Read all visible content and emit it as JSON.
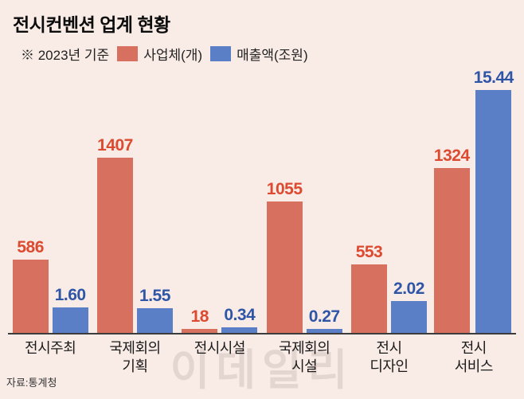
{
  "title": "전시컨벤션 업계 현황",
  "legend": {
    "note": "※ 2023년 기준",
    "series1_label": "사업체(개)",
    "series2_label": "매출액(조원)"
  },
  "source": "자료:통계청",
  "watermark": "이데일리",
  "colors": {
    "background": "#f9ece7",
    "bar_red": "#d7705e",
    "bar_blue": "#5b7fc7",
    "label_red": "#dc4a30",
    "label_blue": "#2f55a7"
  },
  "chart_data": {
    "type": "bar",
    "title": "전시컨벤션 업계 현황",
    "subtitle": "※ 2023년 기준",
    "legend_position": "top",
    "grid": false,
    "categories": [
      "전시주최",
      "국제회의\n기획",
      "전시시설",
      "국제회의\n시설",
      "전시\n디자인",
      "전시\n서비스"
    ],
    "series": [
      {
        "name": "사업체(개)",
        "values": [
          586,
          1407,
          18,
          1055,
          553,
          1324
        ]
      },
      {
        "name": "매출액(조원)",
        "values": [
          1.6,
          1.55,
          0.34,
          0.27,
          2.02,
          15.44
        ]
      }
    ],
    "value_labels": [
      [
        "586",
        "1407",
        "18",
        "1055",
        "553",
        "1324"
      ],
      [
        "1.60",
        "1.55",
        "0.34",
        "0.27",
        "2.02",
        "15.44"
      ]
    ],
    "source": "자료:통계청"
  }
}
